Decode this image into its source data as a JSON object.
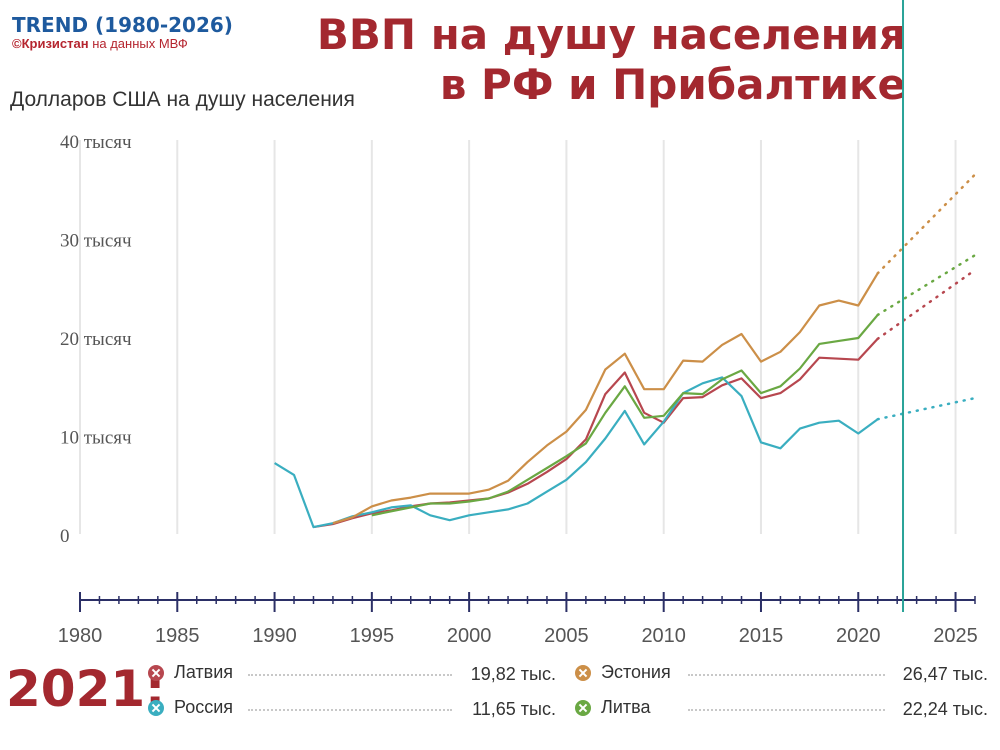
{
  "brand": {
    "title": "TREND (1980-2026)",
    "credit_bold": "©Кризистан",
    "credit_rest": " на данных МВФ"
  },
  "headline": {
    "line1": "ВВП на душу населения",
    "line2": "в РФ и Прибалтике"
  },
  "unit_label": "Долларов США на душу населения",
  "legend": {
    "year": "2021:",
    "items": [
      {
        "name": "Латвия",
        "value": "19,82 тыс.",
        "color": "#b7474f"
      },
      {
        "name": "Россия",
        "value": "11,65 тыс.",
        "color": "#3aaec0"
      },
      {
        "name": "Эстония",
        "value": "26,47 тыс.",
        "color": "#cc8f48"
      },
      {
        "name": "Литва",
        "value": "22,24 тыс.",
        "color": "#6aa843"
      }
    ]
  },
  "chart_data": {
    "type": "line",
    "xlabel": "",
    "ylabel": "Долларов США на душу населения",
    "xlim": [
      1980,
      2026
    ],
    "ylim": [
      0,
      40000
    ],
    "x_ticks": [
      1980,
      1985,
      1990,
      1995,
      2000,
      2005,
      2010,
      2015,
      2020,
      2025
    ],
    "x_tick_labels": [
      "1980",
      "1985",
      "1990",
      "1995",
      "2000",
      "2005",
      "2010",
      "2015",
      "2020",
      "2025"
    ],
    "y_ticks": [
      0,
      10000,
      20000,
      30000,
      40000
    ],
    "y_tick_labels": [
      "0",
      "10 тысяч",
      "20 тысяч",
      "30 тысяч",
      "40 тысяч"
    ],
    "marker_year": 2022.3,
    "grid": true,
    "series": [
      {
        "name": "Латвия",
        "color": "#b7474f",
        "x": [
          1992,
          1993,
          1994,
          1995,
          1996,
          1997,
          1998,
          1999,
          2000,
          2001,
          2002,
          2003,
          2004,
          2005,
          2006,
          2007,
          2008,
          2009,
          2010,
          2011,
          2012,
          2013,
          2014,
          2015,
          2016,
          2017,
          2018,
          2019,
          2020,
          2021
        ],
        "y": [
          700,
          1000,
          1600,
          2100,
          2400,
          2800,
          3100,
          3200,
          3400,
          3600,
          4200,
          5100,
          6300,
          7600,
          9600,
          14200,
          16400,
          12300,
          11300,
          13800,
          13900,
          15100,
          15800,
          13800,
          14300,
          15700,
          17900,
          17800,
          17700,
          19820
        ],
        "forecast_x": [
          2021,
          2026
        ],
        "forecast_y": [
          19820,
          26800
        ]
      },
      {
        "name": "Россия",
        "color": "#3aaec0",
        "x": [
          1990,
          1991,
          1992,
          1993,
          1994,
          1995,
          1996,
          1997,
          1998,
          1999,
          2000,
          2001,
          2002,
          2003,
          2004,
          2005,
          2006,
          2007,
          2008,
          2009,
          2010,
          2011,
          2012,
          2013,
          2014,
          2015,
          2016,
          2017,
          2018,
          2019,
          2020,
          2021
        ],
        "y": [
          7200,
          6000,
          700,
          1100,
          1800,
          2200,
          2700,
          2900,
          1900,
          1400,
          1900,
          2200,
          2500,
          3100,
          4300,
          5500,
          7300,
          9700,
          12500,
          9100,
          11400,
          14300,
          15300,
          15900,
          14000,
          9300,
          8700,
          10700,
          11300,
          11500,
          10200,
          11650
        ],
        "forecast_x": [
          2021,
          2026
        ],
        "forecast_y": [
          11650,
          13800
        ]
      },
      {
        "name": "Эстония",
        "color": "#cc8f48",
        "x": [
          1993,
          1994,
          1995,
          1996,
          1997,
          1998,
          1999,
          2000,
          2001,
          2002,
          2003,
          2004,
          2005,
          2006,
          2007,
          2008,
          2009,
          2010,
          2011,
          2012,
          2013,
          2014,
          2015,
          2016,
          2017,
          2018,
          2019,
          2020,
          2021
        ],
        "y": [
          1100,
          1700,
          2800,
          3400,
          3700,
          4100,
          4100,
          4100,
          4500,
          5400,
          7300,
          9000,
          10400,
          12600,
          16700,
          18300,
          14700,
          14700,
          17600,
          17500,
          19200,
          20300,
          17500,
          18500,
          20500,
          23200,
          23700,
          23200,
          26470
        ],
        "forecast_x": [
          2021,
          2026
        ],
        "forecast_y": [
          26470,
          36500
        ]
      },
      {
        "name": "Литва",
        "color": "#6aa843",
        "x": [
          1995,
          1996,
          1997,
          1998,
          1999,
          2000,
          2001,
          2002,
          2003,
          2004,
          2005,
          2006,
          2007,
          2008,
          2009,
          2010,
          2011,
          2012,
          2013,
          2014,
          2015,
          2016,
          2017,
          2018,
          2019,
          2020,
          2021
        ],
        "y": [
          1900,
          2300,
          2700,
          3100,
          3100,
          3300,
          3600,
          4300,
          5500,
          6700,
          7900,
          9200,
          12300,
          15000,
          11800,
          12000,
          14300,
          14200,
          15700,
          16600,
          14300,
          15000,
          16800,
          19300,
          19600,
          19900,
          22240
        ],
        "forecast_x": [
          2021,
          2026
        ],
        "forecast_y": [
          22240,
          28300
        ]
      }
    ]
  }
}
